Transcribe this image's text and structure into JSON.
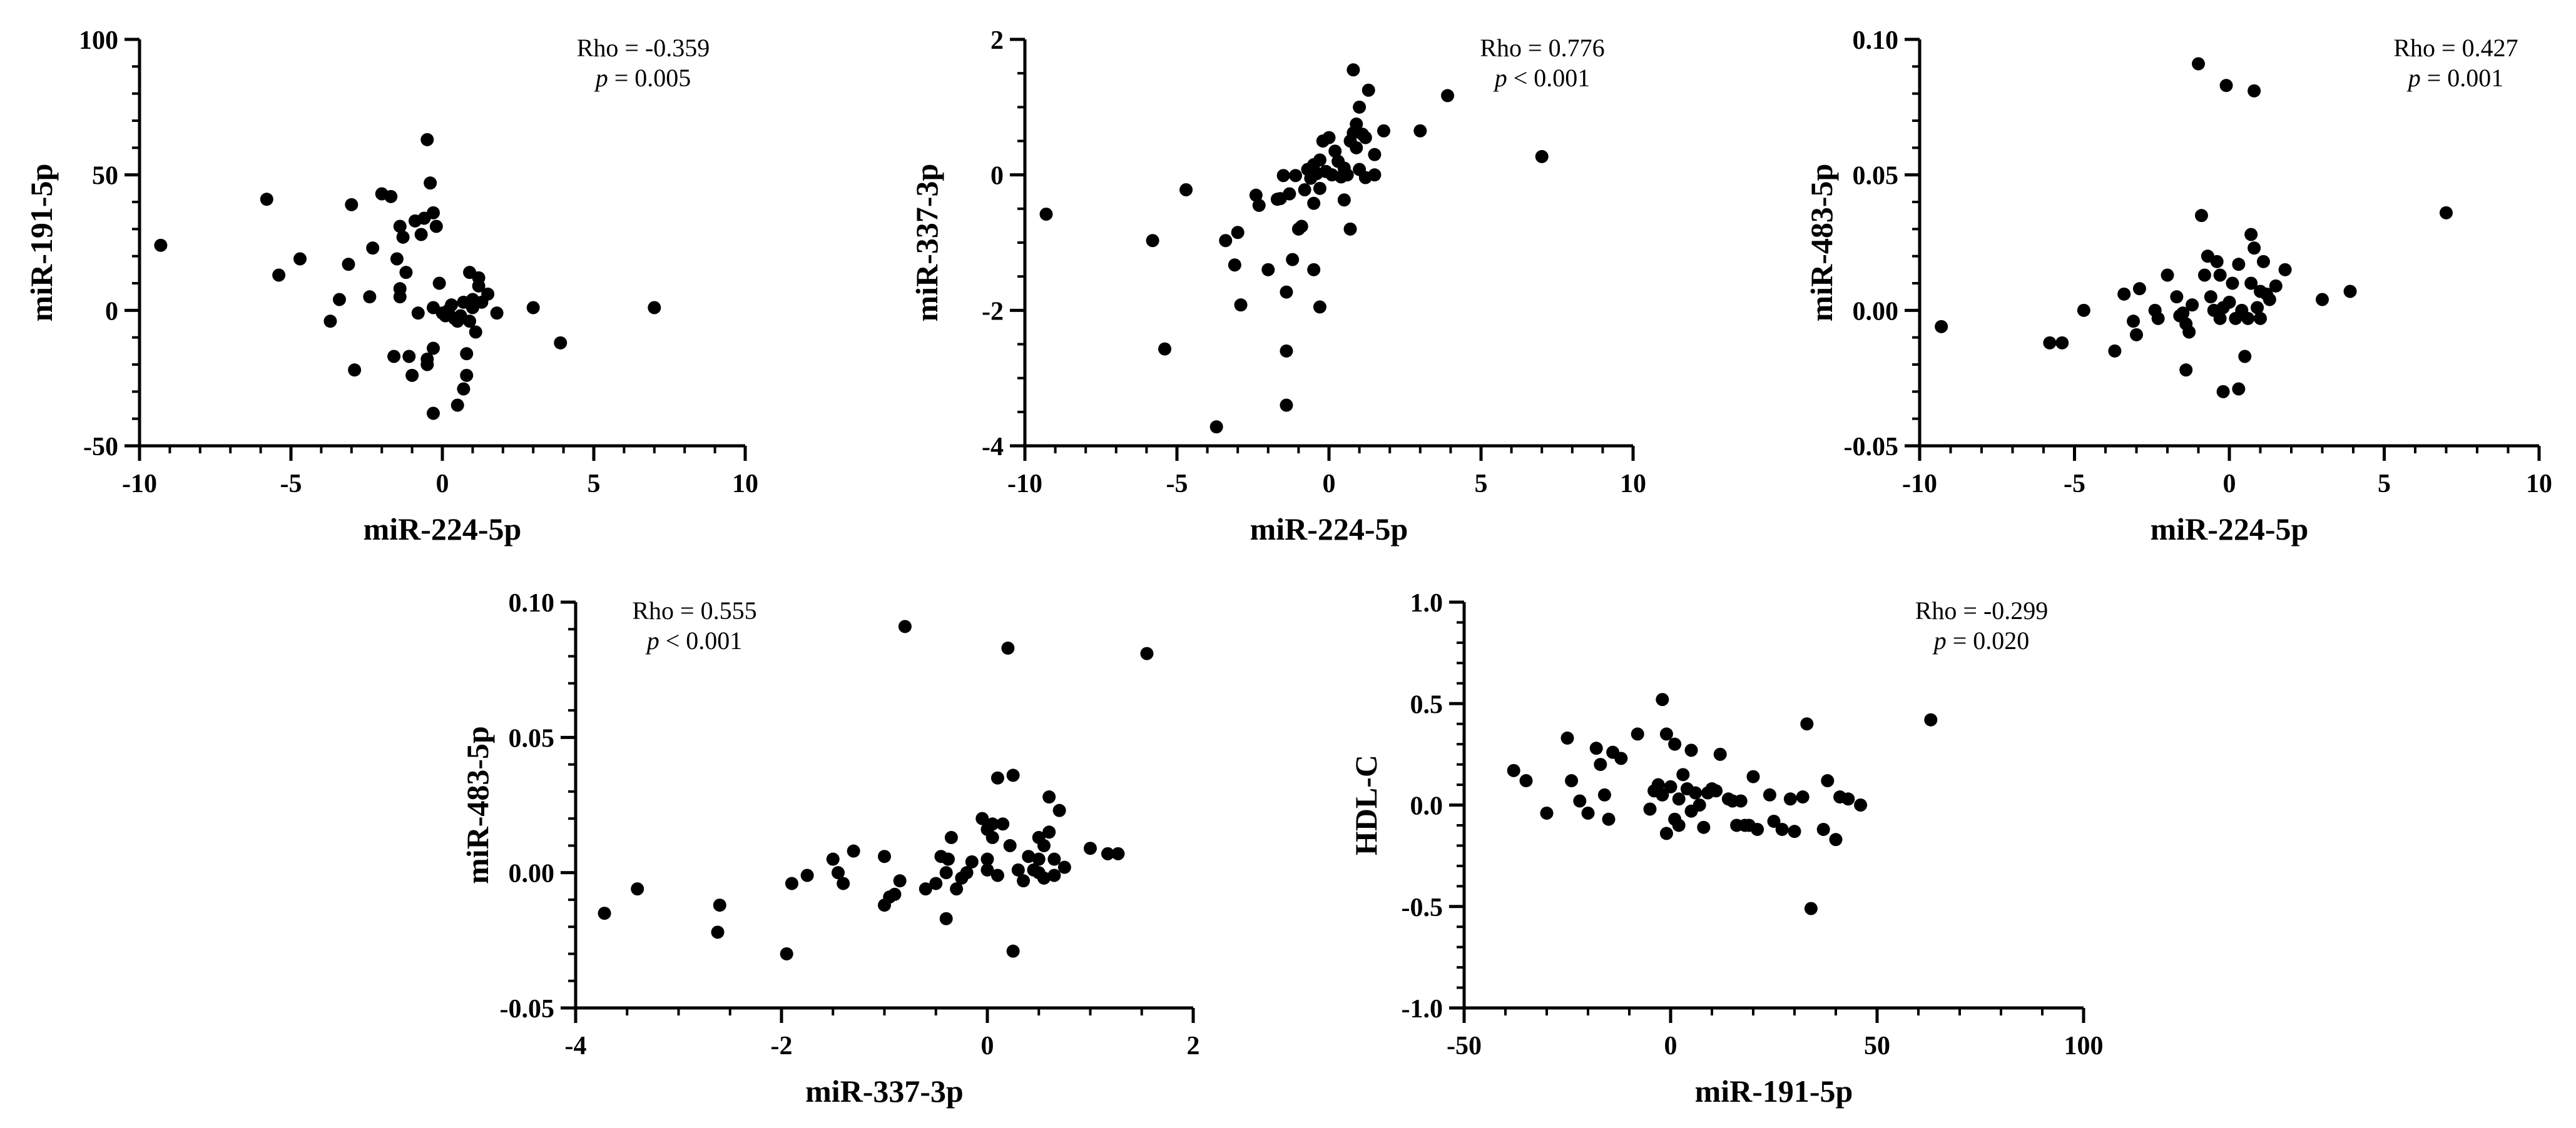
{
  "colors": {
    "ink": "#000000",
    "background": "#ffffff"
  },
  "chart_data": [
    {
      "id": "p1",
      "type": "scatter",
      "title": "",
      "xlabel": "miR-224-5p",
      "ylabel": "miR-191-5p",
      "xlim": [
        -10,
        10
      ],
      "ylim": [
        -50,
        100
      ],
      "xticks": [
        -10,
        -5,
        0,
        5,
        10
      ],
      "xtick_labels": [
        "-10",
        "-5",
        "0",
        "5",
        "10"
      ],
      "yticks": [
        -50,
        0,
        50,
        100
      ],
      "ytick_labels": [
        "-50",
        "0",
        "50",
        "100"
      ],
      "minor_x": 1,
      "minor_y": 10,
      "annotation": {
        "rho": "Rho = -0.359",
        "p_symbol": "p",
        "p_rest": " = 0.005"
      },
      "points": [
        [
          -9.3,
          24
        ],
        [
          -5.8,
          41
        ],
        [
          -5.4,
          13
        ],
        [
          -4.7,
          19
        ],
        [
          -3.7,
          -4
        ],
        [
          -3.4,
          4
        ],
        [
          -3.1,
          17
        ],
        [
          -3.0,
          39
        ],
        [
          -2.9,
          -22
        ],
        [
          -2.4,
          5
        ],
        [
          -2.3,
          23
        ],
        [
          -2.0,
          43
        ],
        [
          -1.7,
          42
        ],
        [
          -1.6,
          -17
        ],
        [
          -1.5,
          19
        ],
        [
          -1.4,
          31
        ],
        [
          -1.4,
          5
        ],
        [
          -1.4,
          8
        ],
        [
          -1.3,
          27
        ],
        [
          -1.2,
          14
        ],
        [
          -1.1,
          -17
        ],
        [
          -1.0,
          -24
        ],
        [
          -0.9,
          33
        ],
        [
          -0.8,
          -1
        ],
        [
          -0.7,
          28
        ],
        [
          -0.6,
          34
        ],
        [
          -0.5,
          63
        ],
        [
          -0.5,
          -18
        ],
        [
          -0.5,
          -20
        ],
        [
          -0.4,
          47
        ],
        [
          -0.3,
          36
        ],
        [
          -0.3,
          1
        ],
        [
          -0.3,
          -38
        ],
        [
          -0.3,
          -14
        ],
        [
          -0.2,
          31
        ],
        [
          -0.1,
          10
        ],
        [
          0.0,
          -1
        ],
        [
          0.1,
          -2
        ],
        [
          0.2,
          0
        ],
        [
          0.3,
          2
        ],
        [
          0.4,
          -3
        ],
        [
          0.5,
          -4
        ],
        [
          0.5,
          -35
        ],
        [
          0.6,
          -2
        ],
        [
          0.7,
          3
        ],
        [
          0.7,
          -29
        ],
        [
          0.8,
          -24
        ],
        [
          0.8,
          -16
        ],
        [
          0.9,
          14
        ],
        [
          0.9,
          -4
        ],
        [
          1.0,
          1
        ],
        [
          1.0,
          4
        ],
        [
          1.1,
          -8
        ],
        [
          1.2,
          12
        ],
        [
          1.2,
          9
        ],
        [
          1.3,
          3
        ],
        [
          1.5,
          6
        ],
        [
          1.8,
          -1
        ],
        [
          3.0,
          1
        ],
        [
          3.9,
          -12
        ],
        [
          7.0,
          1
        ]
      ]
    },
    {
      "id": "p2",
      "type": "scatter",
      "title": "",
      "xlabel": "miR-224-5p",
      "ylabel": "miR-337-3p",
      "xlim": [
        -10,
        10
      ],
      "ylim": [
        -4,
        2
      ],
      "xticks": [
        -10,
        -5,
        0,
        5,
        10
      ],
      "xtick_labels": [
        "-10",
        "-5",
        "0",
        "5",
        "10"
      ],
      "yticks": [
        -4,
        -2,
        0,
        2
      ],
      "ytick_labels": [
        "-4",
        "-2",
        "0",
        "2"
      ],
      "minor_x": 1,
      "minor_y": 0.5,
      "annotation": {
        "rho": "Rho = 0.776",
        "p_symbol": "p",
        "p_rest": " < 0.001"
      },
      "points": [
        [
          -9.3,
          -0.58
        ],
        [
          -5.8,
          -0.97
        ],
        [
          -5.4,
          -2.57
        ],
        [
          -4.7,
          -0.22
        ],
        [
          -3.7,
          -3.72
        ],
        [
          -3.4,
          -0.97
        ],
        [
          -3.1,
          -1.33
        ],
        [
          -3.0,
          -0.85
        ],
        [
          -2.9,
          -1.92
        ],
        [
          -2.4,
          -0.3
        ],
        [
          -2.3,
          -0.45
        ],
        [
          -2.0,
          -1.4
        ],
        [
          -1.7,
          -0.36
        ],
        [
          -1.6,
          -0.35
        ],
        [
          -1.5,
          -0.01
        ],
        [
          -1.4,
          -1.73
        ],
        [
          -1.4,
          -2.6
        ],
        [
          -1.4,
          -3.4
        ],
        [
          -1.3,
          -0.28
        ],
        [
          -1.2,
          -1.25
        ],
        [
          -1.1,
          -0.01
        ],
        [
          -1.0,
          -0.8
        ],
        [
          -0.9,
          -0.76
        ],
        [
          -0.8,
          -0.22
        ],
        [
          -0.7,
          0.08
        ],
        [
          -0.6,
          -0.05
        ],
        [
          -0.5,
          -1.4
        ],
        [
          -0.5,
          -0.42
        ],
        [
          -0.5,
          0.15
        ],
        [
          -0.4,
          0.02
        ],
        [
          -0.3,
          -0.2
        ],
        [
          -0.3,
          0.22
        ],
        [
          -0.3,
          -1.95
        ],
        [
          -0.2,
          0.5
        ],
        [
          -0.1,
          0.05
        ],
        [
          0.0,
          0.55
        ],
        [
          0.1,
          0.0
        ],
        [
          0.2,
          0.35
        ],
        [
          0.3,
          0.2
        ],
        [
          0.4,
          -0.03
        ],
        [
          0.5,
          0.1
        ],
        [
          0.5,
          -0.37
        ],
        [
          0.6,
          0.0
        ],
        [
          0.7,
          0.5
        ],
        [
          0.7,
          -0.8
        ],
        [
          0.8,
          1.55
        ],
        [
          0.8,
          0.62
        ],
        [
          0.9,
          0.75
        ],
        [
          0.9,
          0.4
        ],
        [
          1.0,
          0.08
        ],
        [
          1.0,
          1.0
        ],
        [
          1.1,
          0.6
        ],
        [
          1.2,
          -0.04
        ],
        [
          1.2,
          0.55
        ],
        [
          1.3,
          1.25
        ],
        [
          1.5,
          0.0
        ],
        [
          1.5,
          0.3
        ],
        [
          1.8,
          0.65
        ],
        [
          3.0,
          0.65
        ],
        [
          3.9,
          1.17
        ],
        [
          7.0,
          0.27
        ]
      ]
    },
    {
      "id": "p3",
      "type": "scatter",
      "title": "",
      "xlabel": "miR-224-5p",
      "ylabel": "miR-483-5p",
      "xlim": [
        -10,
        10
      ],
      "ylim": [
        -0.05,
        0.1
      ],
      "xticks": [
        -10,
        -5,
        0,
        5,
        10
      ],
      "xtick_labels": [
        "-10",
        "-5",
        "0",
        "5",
        "10"
      ],
      "yticks": [
        -0.05,
        0.0,
        0.05,
        0.1
      ],
      "ytick_labels": [
        "-0.05",
        "0.00",
        "0.05",
        "0.10"
      ],
      "minor_x": 1,
      "minor_y": 0.01,
      "annotation": {
        "rho": "Rho = 0.427",
        "p_symbol": "p",
        "p_rest": " = 0.001"
      },
      "points": [
        [
          -9.3,
          -0.006
        ],
        [
          -5.8,
          -0.012
        ],
        [
          -5.4,
          -0.012
        ],
        [
          -4.7,
          0.0
        ],
        [
          -3.7,
          -0.015
        ],
        [
          -3.4,
          0.006
        ],
        [
          -3.1,
          -0.004
        ],
        [
          -3.0,
          -0.009
        ],
        [
          -2.9,
          0.008
        ],
        [
          -2.4,
          0.0
        ],
        [
          -2.3,
          -0.003
        ],
        [
          -2.0,
          0.013
        ],
        [
          -1.7,
          0.005
        ],
        [
          -1.6,
          -0.002
        ],
        [
          -1.5,
          -0.001
        ],
        [
          -1.4,
          -0.022
        ],
        [
          -1.4,
          -0.005
        ],
        [
          -1.3,
          -0.008
        ],
        [
          -1.2,
          0.002
        ],
        [
          -1.0,
          0.091
        ],
        [
          -0.9,
          0.035
        ],
        [
          -0.8,
          0.013
        ],
        [
          -0.7,
          0.02
        ],
        [
          -0.6,
          0.005
        ],
        [
          -0.5,
          0.0
        ],
        [
          -0.4,
          0.018
        ],
        [
          -0.3,
          -0.003
        ],
        [
          -0.3,
          0.013
        ],
        [
          -0.2,
          -0.03
        ],
        [
          -0.2,
          0.001
        ],
        [
          -0.1,
          0.083
        ],
        [
          0.0,
          0.003
        ],
        [
          0.1,
          0.01
        ],
        [
          0.2,
          -0.003
        ],
        [
          0.3,
          0.017
        ],
        [
          0.3,
          -0.029
        ],
        [
          0.4,
          0.0
        ],
        [
          0.5,
          -0.017
        ],
        [
          0.6,
          -0.003
        ],
        [
          0.7,
          0.028
        ],
        [
          0.7,
          0.01
        ],
        [
          0.8,
          0.081
        ],
        [
          0.8,
          0.023
        ],
        [
          0.9,
          0.001
        ],
        [
          1.0,
          0.007
        ],
        [
          1.0,
          -0.003
        ],
        [
          1.1,
          0.018
        ],
        [
          1.2,
          0.006
        ],
        [
          1.3,
          0.004
        ],
        [
          1.5,
          0.009
        ],
        [
          1.8,
          0.015
        ],
        [
          3.0,
          0.004
        ],
        [
          3.9,
          0.007
        ],
        [
          7.0,
          0.036
        ]
      ]
    },
    {
      "id": "p4",
      "type": "scatter",
      "title": "",
      "xlabel": "miR-337-3p",
      "ylabel": "miR-483-5p",
      "xlim": [
        -4,
        2
      ],
      "ylim": [
        -0.05,
        0.1
      ],
      "xticks": [
        -4,
        -2,
        0,
        2
      ],
      "xtick_labels": [
        "-4",
        "-2",
        "0",
        "2"
      ],
      "yticks": [
        -0.05,
        0.0,
        0.05,
        0.1
      ],
      "ytick_labels": [
        "-0.05",
        "0.00",
        "0.05",
        "0.10"
      ],
      "minor_x": 0.5,
      "minor_y": 0.01,
      "annotation": {
        "rho": "Rho = 0.555",
        "p_symbol": "p",
        "p_rest": " < 0.001"
      },
      "points": [
        [
          -3.72,
          -0.015
        ],
        [
          -3.4,
          -0.006
        ],
        [
          -2.6,
          -0.012
        ],
        [
          -2.62,
          -0.022
        ],
        [
          -1.95,
          -0.03
        ],
        [
          -1.9,
          -0.004
        ],
        [
          -1.75,
          -0.001
        ],
        [
          -1.5,
          0.005
        ],
        [
          -1.45,
          0.0
        ],
        [
          -1.4,
          -0.004
        ],
        [
          -1.3,
          0.008
        ],
        [
          -1.0,
          0.006
        ],
        [
          -1.0,
          -0.012
        ],
        [
          -0.95,
          -0.009
        ],
        [
          -0.9,
          -0.008
        ],
        [
          -0.85,
          -0.003
        ],
        [
          -0.8,
          0.091
        ],
        [
          -0.6,
          -0.006
        ],
        [
          -0.5,
          -0.004
        ],
        [
          -0.45,
          0.006
        ],
        [
          -0.4,
          0.0
        ],
        [
          -0.4,
          -0.017
        ],
        [
          -0.38,
          0.005
        ],
        [
          -0.35,
          0.013
        ],
        [
          -0.3,
          -0.006
        ],
        [
          -0.25,
          -0.002
        ],
        [
          -0.2,
          0.0
        ],
        [
          -0.15,
          0.004
        ],
        [
          -0.05,
          0.02
        ],
        [
          0.0,
          0.001
        ],
        [
          0.0,
          0.005
        ],
        [
          0.0,
          0.016
        ],
        [
          0.05,
          0.013
        ],
        [
          0.05,
          0.018
        ],
        [
          0.1,
          -0.001
        ],
        [
          0.1,
          0.035
        ],
        [
          0.15,
          0.018
        ],
        [
          0.2,
          0.083
        ],
        [
          0.22,
          0.01
        ],
        [
          0.25,
          0.036
        ],
        [
          0.25,
          -0.029
        ],
        [
          0.3,
          0.001
        ],
        [
          0.35,
          -0.003
        ],
        [
          0.4,
          0.006
        ],
        [
          0.45,
          0.001
        ],
        [
          0.5,
          0.0
        ],
        [
          0.5,
          0.005
        ],
        [
          0.5,
          0.013
        ],
        [
          0.55,
          0.01
        ],
        [
          0.55,
          -0.002
        ],
        [
          0.6,
          0.015
        ],
        [
          0.6,
          0.028
        ],
        [
          0.65,
          0.005
        ],
        [
          0.65,
          -0.001
        ],
        [
          0.7,
          0.023
        ],
        [
          0.75,
          0.002
        ],
        [
          1.0,
          0.009
        ],
        [
          1.17,
          0.007
        ],
        [
          1.27,
          0.007
        ],
        [
          1.55,
          0.081
        ]
      ]
    },
    {
      "id": "p5",
      "type": "scatter",
      "title": "",
      "xlabel": "miR-191-5p",
      "ylabel": "HDL-C",
      "xlim": [
        -50,
        100
      ],
      "ylim": [
        -1.0,
        1.0
      ],
      "xticks": [
        -50,
        0,
        50,
        100
      ],
      "xtick_labels": [
        "-50",
        "0",
        "50",
        "100"
      ],
      "yticks": [
        -1.0,
        -0.5,
        0.0,
        0.5,
        1.0
      ],
      "ytick_labels": [
        "-1.0",
        "-0.5",
        "0.0",
        "0.5",
        "1.0"
      ],
      "minor_x": 10,
      "minor_y": 0.1,
      "annotation": {
        "rho": "Rho = -0.299",
        "p_symbol": "p",
        "p_rest": " = 0.020"
      },
      "points": [
        [
          -38,
          0.17
        ],
        [
          -35,
          0.12
        ],
        [
          -30,
          -0.04
        ],
        [
          -25,
          0.33
        ],
        [
          -24,
          0.12
        ],
        [
          -22,
          0.02
        ],
        [
          -20,
          -0.04
        ],
        [
          -18,
          0.28
        ],
        [
          -17,
          0.2
        ],
        [
          -16,
          0.05
        ],
        [
          -15,
          -0.07
        ],
        [
          -14,
          0.26
        ],
        [
          -12,
          0.23
        ],
        [
          -8,
          0.35
        ],
        [
          -5,
          -0.02
        ],
        [
          -4,
          0.07
        ],
        [
          -3,
          0.1
        ],
        [
          -2,
          0.52
        ],
        [
          -2,
          0.05
        ],
        [
          -1,
          -0.14
        ],
        [
          -1,
          0.35
        ],
        [
          0,
          0.09
        ],
        [
          1,
          0.3
        ],
        [
          1,
          -0.07
        ],
        [
          2,
          0.03
        ],
        [
          2,
          -0.1
        ],
        [
          3,
          0.15
        ],
        [
          4,
          0.08
        ],
        [
          5,
          0.27
        ],
        [
          5,
          -0.03
        ],
        [
          6,
          0.06
        ],
        [
          7,
          0.0
        ],
        [
          8,
          -0.11
        ],
        [
          9,
          0.06
        ],
        [
          10,
          0.08
        ],
        [
          11,
          0.07
        ],
        [
          12,
          0.25
        ],
        [
          14,
          0.03
        ],
        [
          15,
          0.02
        ],
        [
          16,
          -0.1
        ],
        [
          17,
          0.02
        ],
        [
          18,
          -0.1
        ],
        [
          19,
          -0.1
        ],
        [
          20,
          0.14
        ],
        [
          21,
          -0.12
        ],
        [
          24,
          0.05
        ],
        [
          25,
          -0.08
        ],
        [
          27,
          -0.12
        ],
        [
          29,
          0.03
        ],
        [
          30,
          -0.13
        ],
        [
          32,
          0.04
        ],
        [
          33,
          0.4
        ],
        [
          34,
          -0.51
        ],
        [
          37,
          -0.12
        ],
        [
          38,
          0.12
        ],
        [
          40,
          -0.17
        ],
        [
          41,
          0.04
        ],
        [
          43,
          0.03
        ],
        [
          46,
          0.0
        ],
        [
          63,
          0.42
        ]
      ]
    }
  ]
}
